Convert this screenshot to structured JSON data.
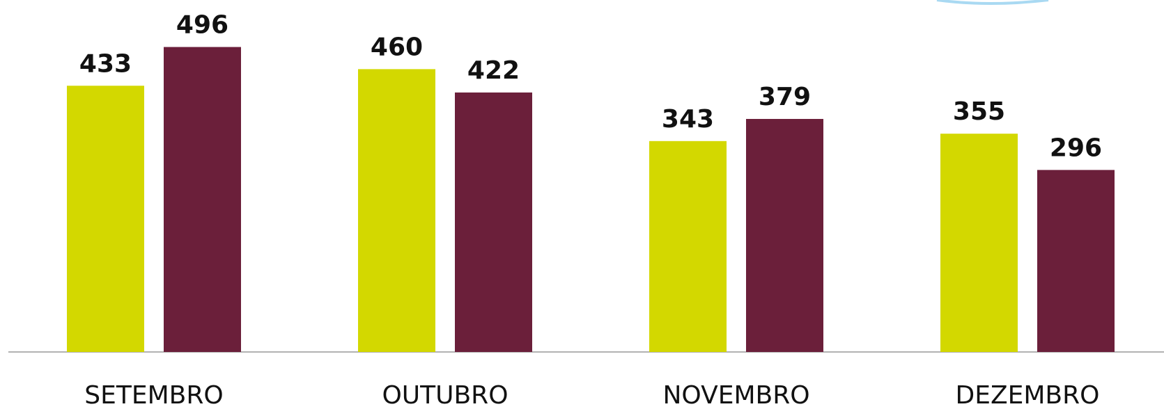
{
  "chart_data": {
    "type": "bar",
    "categories": [
      "SETEMBRO",
      "OUTUBRO",
      "NOVEMBRO",
      "DEZEMBRO"
    ],
    "series": [
      {
        "color": "#d3d800",
        "values": [
          433,
          460,
          343,
          355
        ]
      },
      {
        "color": "#6b1f3a",
        "values": [
          496,
          422,
          379,
          296
        ]
      }
    ],
    "ylim": [
      0,
      560
    ]
  }
}
